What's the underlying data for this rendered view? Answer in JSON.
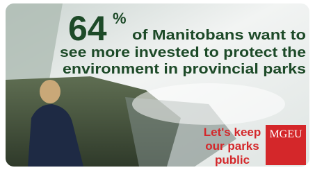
{
  "headline": {
    "figure": "64",
    "unit": "%",
    "lines": [
      "of Manitobans want to",
      "see more invested to protect the",
      "environment in provincial parks"
    ]
  },
  "slogan": {
    "lines": [
      "Let's keep",
      "our parks",
      "public"
    ]
  },
  "logo": {
    "text": "MGEU"
  }
}
